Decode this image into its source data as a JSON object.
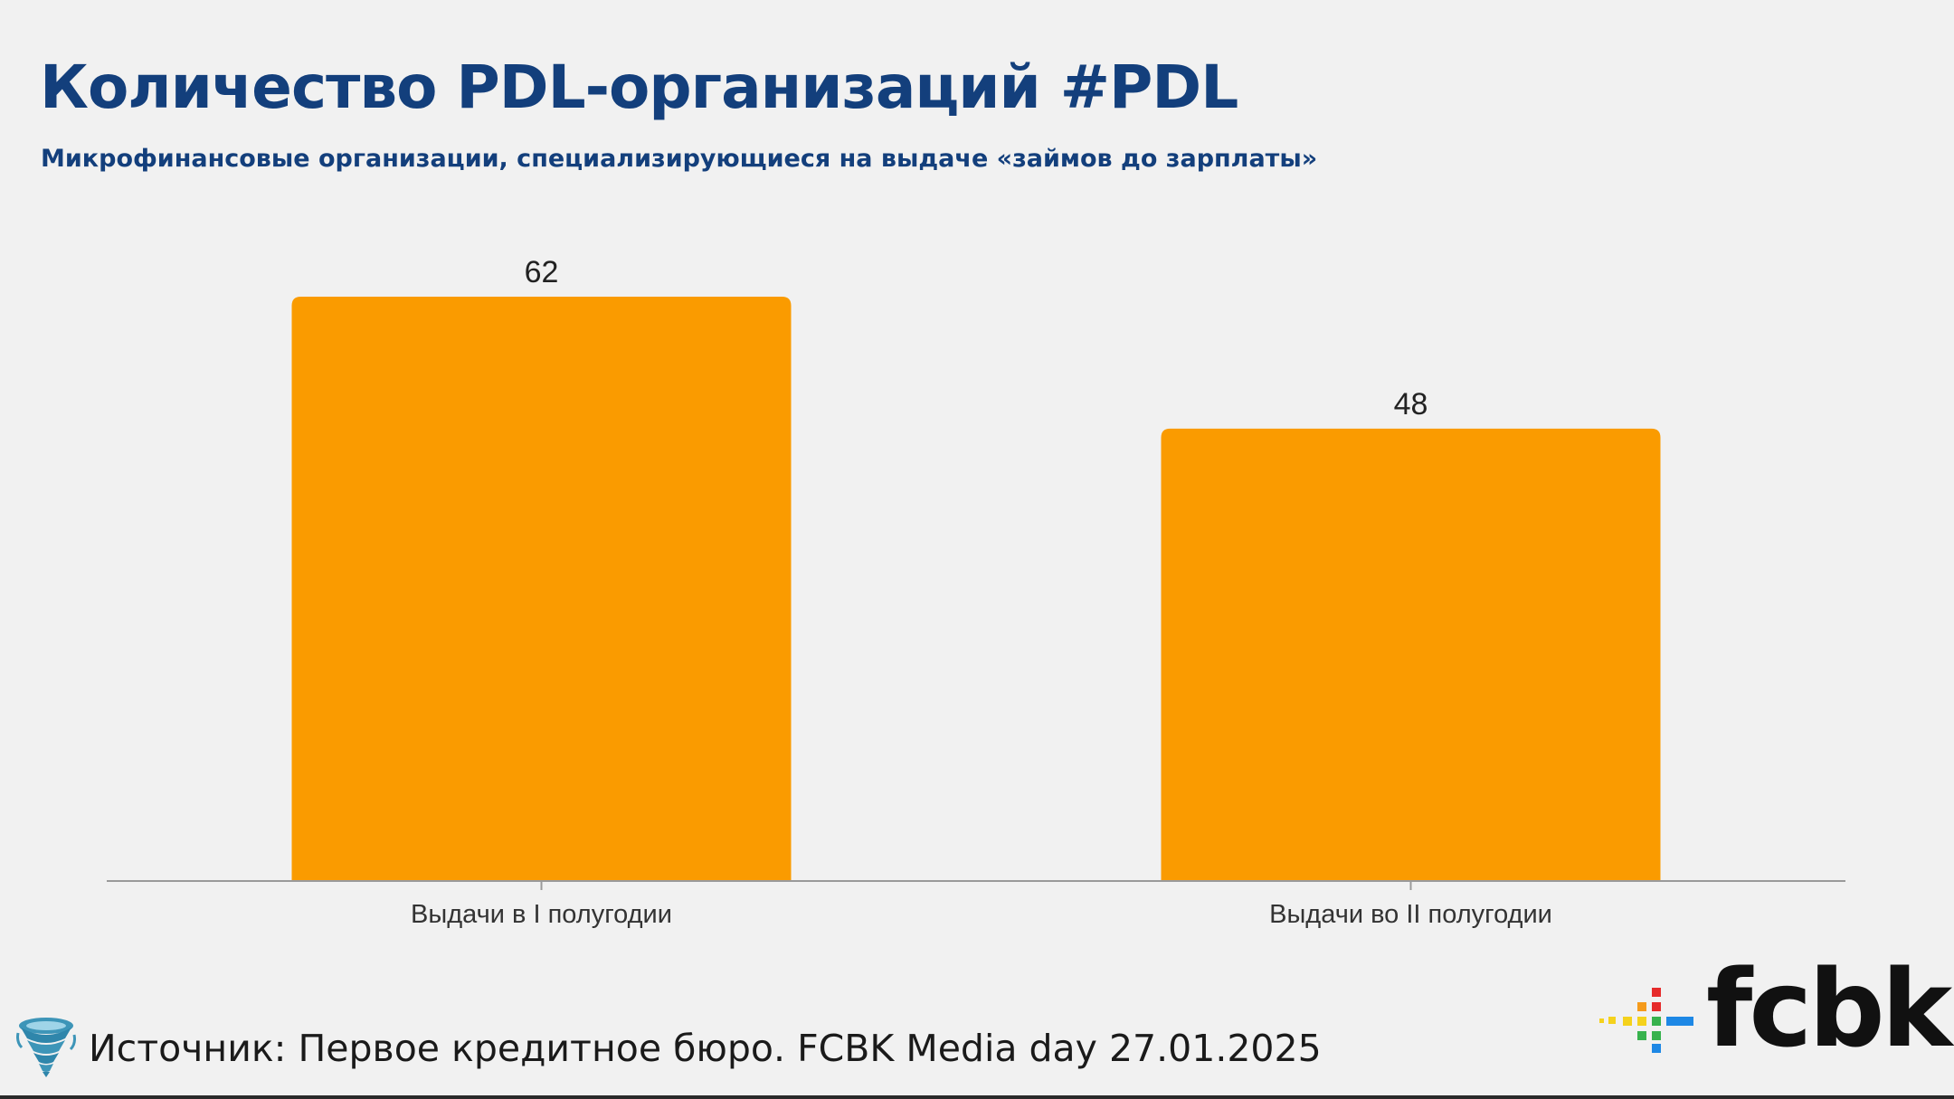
{
  "header": {
    "title": "Количество PDL-организаций #PDL",
    "subtitle": "Микрофинансовые организации, специализирующиеся на выдаче «займов до зарплаты»"
  },
  "chart_data": {
    "type": "bar",
    "categories": [
      "Выдачи в I полугодии",
      "Выдачи во II полугодии"
    ],
    "values": [
      62,
      48
    ],
    "title": "Количество PDL-организаций #PDL",
    "subtitle": "Микрофинансовые организации, специализирующиеся на выдаче «займов до зарплаты»",
    "xlabel": "",
    "ylabel": "",
    "ylim": [
      0,
      62
    ],
    "grid": false,
    "legend": "none",
    "bar_color": "#fa9b00"
  },
  "footer": {
    "source": "Источник: Первое кредитное бюро. FCBK Media day 27.01.2025",
    "source_icon": "tornado-icon",
    "logo_text": "fcbk",
    "logo_colors": {
      "red": "#e62b2b",
      "orange": "#f59b1c",
      "yellow": "#f5d21c",
      "green": "#37b24d",
      "blue": "#1e88e5"
    }
  }
}
